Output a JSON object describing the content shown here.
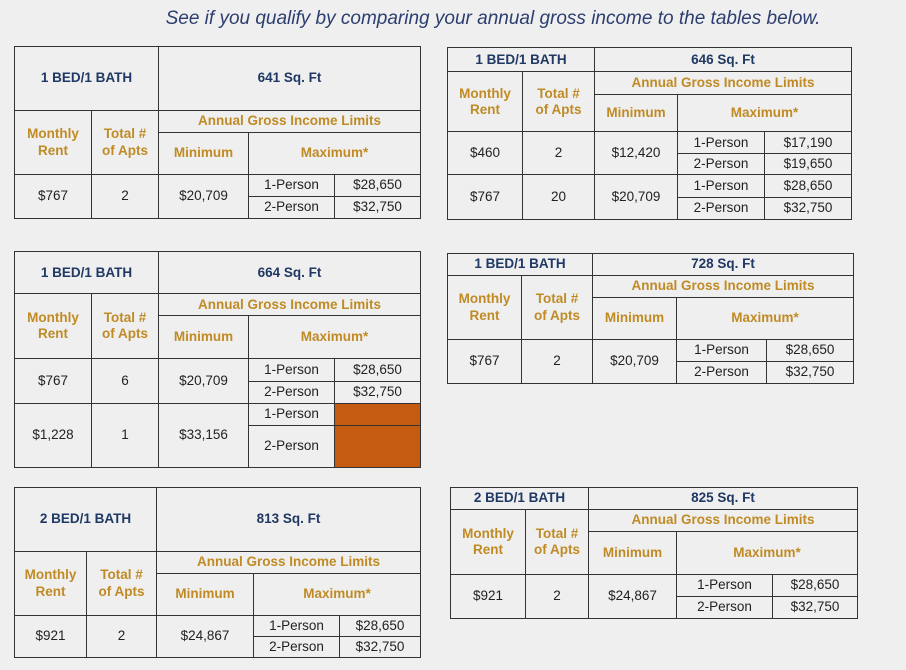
{
  "headline": "See if you qualify by comparing your annual gross income to the tables below.",
  "labels": {
    "monthly": "Monthly",
    "rent": "Rent",
    "total": "Total #",
    "of_apts": "of Apts",
    "income_limits": "Annual Gross Income Limits",
    "minimum": "Minimum",
    "maximum": "Maximum*",
    "one_person": "1-Person",
    "two_person": "2-Person"
  },
  "tables": [
    {
      "unit": "1 BED/1 BATH",
      "sqft": "641 Sq. Ft",
      "rows": [
        {
          "rent": "$767",
          "apts": "2",
          "min": "$20,709",
          "max1": "$28,650",
          "max2": "$32,750"
        }
      ]
    },
    {
      "unit": "1 BED/1 BATH",
      "sqft": "646 Sq. Ft",
      "rows": [
        {
          "rent": "$460",
          "apts": "2",
          "min": "$12,420",
          "max1": "$17,190",
          "max2": "$19,650"
        },
        {
          "rent": "$767",
          "apts": "20",
          "min": "$20,709",
          "max1": "$28,650",
          "max2": "$32,750"
        }
      ]
    },
    {
      "unit": "1 BED/1 BATH",
      "sqft": "664 Sq. Ft",
      "rows": [
        {
          "rent": "$767",
          "apts": "6",
          "min": "$20,709",
          "max1": "$28,650",
          "max2": "$32,750"
        },
        {
          "rent": "$1,228",
          "apts": "1",
          "min": "$33,156",
          "max1": "",
          "max2": ""
        }
      ],
      "highlight_color": "#c55a11"
    },
    {
      "unit": "1 BED/1 BATH",
      "sqft": "728 Sq. Ft",
      "rows": [
        {
          "rent": "$767",
          "apts": "2",
          "min": "$20,709",
          "max1": "$28,650",
          "max2": "$32,750"
        }
      ]
    },
    {
      "unit": "2 BED/1 BATH",
      "sqft": "813 Sq. Ft",
      "rows": [
        {
          "rent": "$921",
          "apts": "2",
          "min": "$24,867",
          "max1": "$28,650",
          "max2": "$32,750"
        }
      ]
    },
    {
      "unit": "2 BED/1 BATH",
      "sqft": "825 Sq. Ft",
      "rows": [
        {
          "rent": "$921",
          "apts": "2",
          "min": "$24,867",
          "max1": "$28,650",
          "max2": "$32,750"
        }
      ]
    }
  ],
  "colors": {
    "title_blue": "#1f3864",
    "header_gold": "#c08b25",
    "background": "#efefef"
  }
}
